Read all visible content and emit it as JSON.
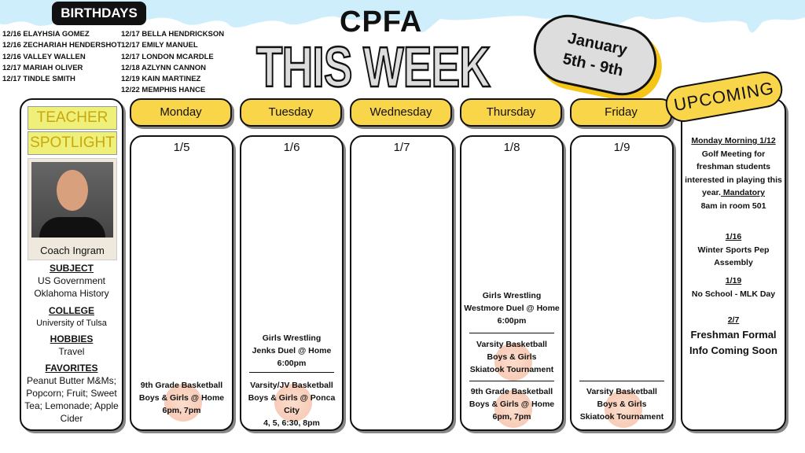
{
  "birthdays": {
    "title": "BIRTHDAYS",
    "left": [
      "12/16 ELAYHSIA GOMEZ",
      "12/16 ZECHARIAH HENDERSHOT",
      "12/16 VALLEY WALLEN",
      "12/17 MARIAH OLIVER",
      "12/17 TINDLE SMITH"
    ],
    "right": [
      "12/17 BELLA HENDRICKSON",
      "12/17 EMILY MANUEL",
      "12/17 LONDON MCARDLE",
      "12/18 AZLYNN CANNON",
      "12/19 KAIN MARTINEZ",
      "12/22 MEMPHIS HANCE"
    ]
  },
  "header": {
    "school": "CPFA",
    "title": "THIS WEEK",
    "date_line1": "January",
    "date_line2": "5th - 9th"
  },
  "teacher": {
    "title1": "TEACHER",
    "title2": "SPOTLIGHT",
    "name": "Coach Ingram",
    "subject_label": "SUBJECT",
    "subject": [
      "US Government",
      "Oklahoma History"
    ],
    "college_label": "COLLEGE",
    "college": "University of Tulsa",
    "hobbies_label": "HOBBIES",
    "hobbies": "Travel",
    "favorites_label": "FAVORITES",
    "favorites": "Peanut Butter M&Ms; Popcorn; Fruit; Sweet Tea; Lemonade; Apple Cider"
  },
  "days": [
    {
      "name": "Monday",
      "date": "1/5",
      "events": [
        "",
        "9th Grade Basketball|Boys & Girls @ Home|6pm, 7pm"
      ]
    },
    {
      "name": "Tuesday",
      "date": "1/6",
      "events": [
        "Girls Wrestling|Jenks Duel @ Home|6:00pm",
        "Varsity/JV Basketball|Boys & Girls @ Ponca City|4, 5, 6:30, 8pm"
      ]
    },
    {
      "name": "Wednesday",
      "date": "1/7",
      "events": []
    },
    {
      "name": "Thursday",
      "date": "1/8",
      "events": [
        "Girls Wrestling|Westmore Duel @ Home|6:00pm",
        "Varsity Basketball|Boys & Girls|Skiatook Tournament",
        "9th Grade Basketball|Boys & Girls @ Home|6pm, 7pm"
      ]
    },
    {
      "name": "Friday",
      "date": "1/9",
      "events": [
        "Varsity Basketball|Boys & Girls|Skiatook Tournament"
      ]
    }
  ],
  "upcoming": {
    "title": "UPCOMING",
    "items": [
      {
        "date": "Monday Morning 1/12",
        "lines": [
          "Golf Meeting for",
          "freshman students",
          "interested in playing this",
          "year."
        ],
        "mandatory": "Mandatory",
        "last": "8am in room 501"
      },
      {
        "date": "1/16",
        "lines": [
          "Winter Sports Pep",
          "Assembly"
        ]
      },
      {
        "date": "1/19",
        "lines": [
          "No School - MLK Day"
        ]
      },
      {
        "date": "2/7",
        "lines": [
          "Freshman Formal",
          "Info Coming Soon"
        ]
      }
    ]
  },
  "colors": {
    "accent": "#f9d54a",
    "drip": "#bfe6f5"
  }
}
